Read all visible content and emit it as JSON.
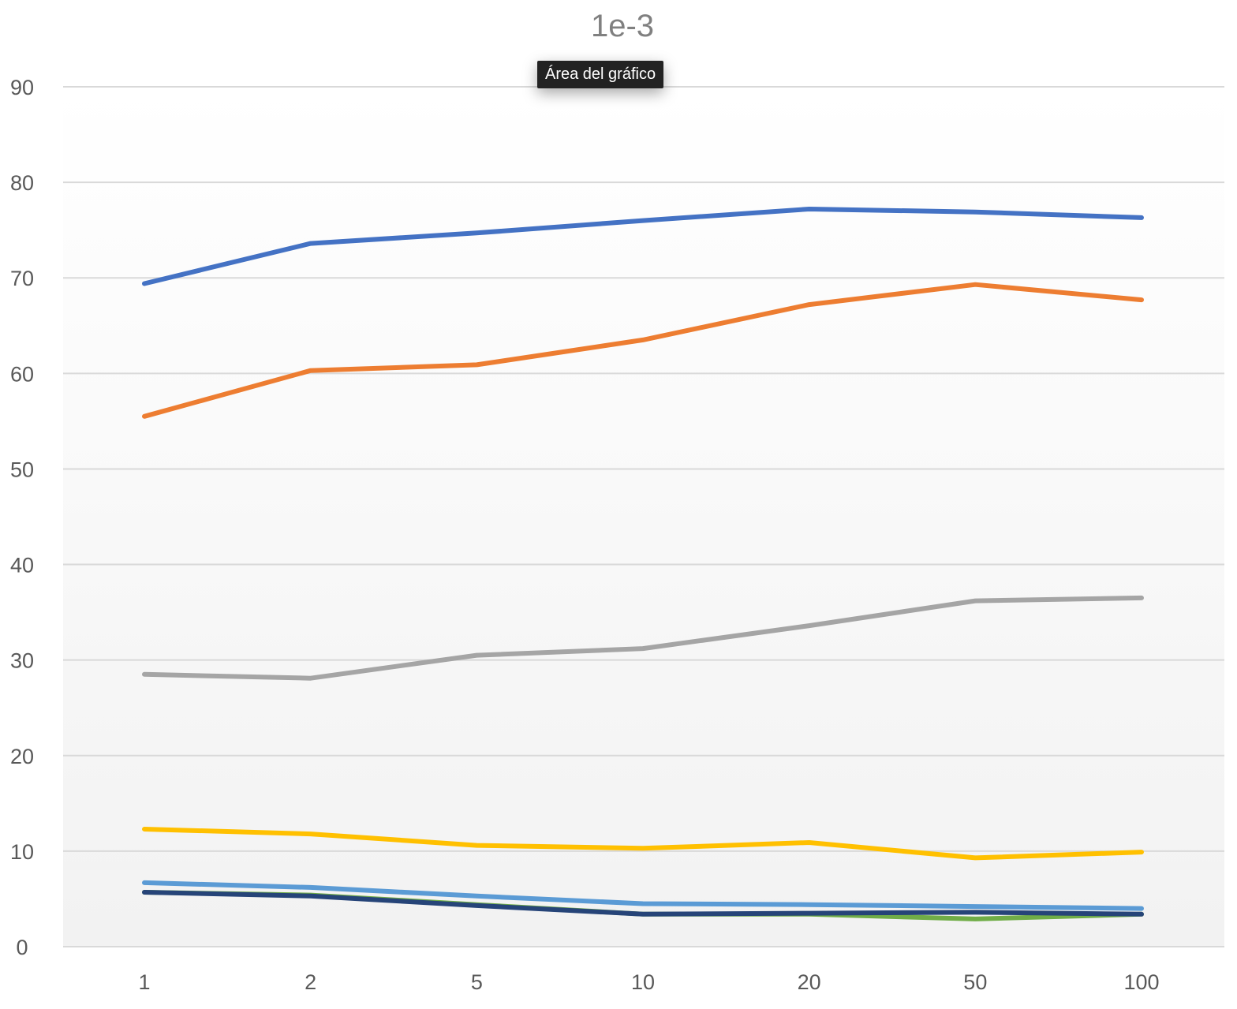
{
  "tooltip": {
    "text": "Área del gráfico"
  },
  "chart_data": {
    "type": "line",
    "title": "1e-3",
    "xlabel": "",
    "ylabel": "",
    "categories": [
      "1",
      "2",
      "5",
      "10",
      "20",
      "50",
      "100"
    ],
    "y_ticks": [
      "0",
      "10",
      "20",
      "30",
      "40",
      "50",
      "60",
      "70",
      "80",
      "90"
    ],
    "ylim": [
      0,
      90
    ],
    "grid": true,
    "legend": "none",
    "background_gradient": [
      "#ffffff",
      "#f2f2f2"
    ],
    "gridline_color": "#d9d9d9",
    "series": [
      {
        "color": "#4472c4",
        "values": [
          69.4,
          73.6,
          74.7,
          76.0,
          77.2,
          76.9,
          76.3
        ]
      },
      {
        "color": "#ed7d31",
        "values": [
          55.5,
          60.3,
          60.9,
          63.5,
          67.2,
          69.3,
          67.7
        ]
      },
      {
        "color": "#a5a5a5",
        "values": [
          28.5,
          28.1,
          30.5,
          31.2,
          33.6,
          36.2,
          36.5
        ]
      },
      {
        "color": "#ffc000",
        "values": [
          12.3,
          11.8,
          10.6,
          10.3,
          10.9,
          9.3,
          9.9
        ]
      },
      {
        "color": "#5b9bd5",
        "values": [
          6.7,
          6.2,
          5.3,
          4.5,
          4.4,
          4.2,
          4.0
        ]
      },
      {
        "color": "#70ad47",
        "values": [
          5.7,
          5.4,
          4.4,
          3.4,
          3.4,
          2.9,
          3.4
        ]
      },
      {
        "color": "#264478",
        "values": [
          5.7,
          5.3,
          4.3,
          3.4,
          3.5,
          3.6,
          3.4
        ]
      }
    ]
  }
}
